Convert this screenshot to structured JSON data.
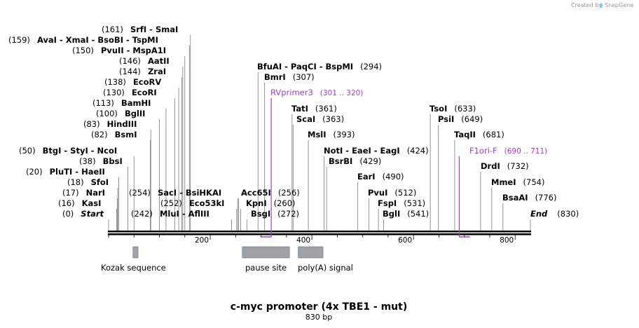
{
  "credit": {
    "created_by": "Created by",
    "brand": "SnapGene"
  },
  "title": "c-myc promoter (4x TBE1 - mut)",
  "subtitle": "830 bp",
  "length": 830,
  "axis": {
    "ticks": [
      {
        "value": 200,
        "label": "200"
      },
      {
        "value": 400,
        "label": "400"
      },
      {
        "value": 600,
        "label": "600"
      },
      {
        "value": 800,
        "label": "800"
      }
    ]
  },
  "colors": {
    "backbone": "#000000",
    "feature": "#9ea1a6",
    "primer": "#a23bd1",
    "leader": "#7a7a7a"
  },
  "sites": [
    {
      "pos": "(0)",
      "name": "Start",
      "at": 0,
      "italic": true
    },
    {
      "pos": "(16)",
      "name": "KasI",
      "at": 16
    },
    {
      "pos": "(17)",
      "name": "NarI",
      "at": 17
    },
    {
      "pos": "(18)",
      "name": "SfoI",
      "at": 18
    },
    {
      "pos": "(20)",
      "name": "PluTI  -  HaeII",
      "at": 20
    },
    {
      "pos": "(38)",
      "name": "BbsI",
      "at": 38
    },
    {
      "pos": "(50)",
      "name": "BtgI  -  StyI  -  NcoI",
      "at": 50
    },
    {
      "pos": "(82)",
      "name": "BsmI",
      "at": 82
    },
    {
      "pos": "(83)",
      "name": "HindIII",
      "at": 83
    },
    {
      "pos": "(100)",
      "name": "BglII",
      "at": 100
    },
    {
      "pos": "(113)",
      "name": "BamHI",
      "at": 113
    },
    {
      "pos": "(130)",
      "name": "EcoRI",
      "at": 130
    },
    {
      "pos": "(138)",
      "name": "EcoRV",
      "at": 138
    },
    {
      "pos": "(144)",
      "name": "ZraI",
      "at": 144
    },
    {
      "pos": "(146)",
      "name": "AatII",
      "at": 146
    },
    {
      "pos": "(150)",
      "name": "PvuII  -  MspA1I",
      "at": 150
    },
    {
      "pos": "(159)",
      "name": "AvaI  -  XmaI  -  BsoBI  -  TspMI",
      "at": 159
    },
    {
      "pos": "(161)",
      "name": "SrfI  -  SmaI",
      "at": 161
    },
    {
      "pos": "(242)",
      "name": "MluI  -  AflIII",
      "at": 242
    },
    {
      "pos": "(252)",
      "name": "Eco53kI",
      "at": 252
    },
    {
      "pos": "(254)",
      "name": "SacI  -  BsiHKAI",
      "at": 254
    },
    {
      "pos": "(256)",
      "name": "Acc65I",
      "at": 256
    },
    {
      "pos": "(260)",
      "name": "KpnI",
      "at": 260
    },
    {
      "pos": "(272)",
      "name": "BsgI",
      "at": 272
    },
    {
      "pos": "(294)",
      "name": "BfuAI  -  PaqCI  -  BspMI",
      "at": 294
    },
    {
      "pos": "(307)",
      "name": "BmrI",
      "at": 307
    },
    {
      "pos": "(361)",
      "name": "TatI",
      "at": 361
    },
    {
      "pos": "(363)",
      "name": "ScaI",
      "at": 363
    },
    {
      "pos": "(393)",
      "name": "MslI",
      "at": 393
    },
    {
      "pos": "(424)",
      "name": "NotI  -  EaeI  -  EagI",
      "at": 424
    },
    {
      "pos": "(429)",
      "name": "BsrBI",
      "at": 429
    },
    {
      "pos": "(490)",
      "name": "EarI",
      "at": 490
    },
    {
      "pos": "(512)",
      "name": "PvuI",
      "at": 512
    },
    {
      "pos": "(531)",
      "name": "FspI",
      "at": 531
    },
    {
      "pos": "(541)",
      "name": "BglI",
      "at": 541
    },
    {
      "pos": "(633)",
      "name": "TsoI",
      "at": 633
    },
    {
      "pos": "(649)",
      "name": "PsiI",
      "at": 649
    },
    {
      "pos": "(681)",
      "name": "TaqII",
      "at": 681
    },
    {
      "pos": "(732)",
      "name": "DrdI",
      "at": 732
    },
    {
      "pos": "(754)",
      "name": "MmeI",
      "at": 754
    },
    {
      "pos": "(776)",
      "name": "BsaAI",
      "at": 776
    },
    {
      "pos": "(830)",
      "name": "End",
      "at": 830,
      "italic": true
    }
  ],
  "primers": [
    {
      "name": "RVprimer3",
      "range": "(301 .. 320)",
      "start": 301,
      "end": 320
    },
    {
      "name": "F1ori-F",
      "range": "(690 .. 711)",
      "start": 690,
      "end": 711
    }
  ],
  "features": [
    {
      "name": "Kozak sequence",
      "start": 48,
      "end": 58
    },
    {
      "name": "pause site",
      "start": 263,
      "end": 356
    },
    {
      "name": "poly(A) signal",
      "start": 373,
      "end": 422
    }
  ]
}
